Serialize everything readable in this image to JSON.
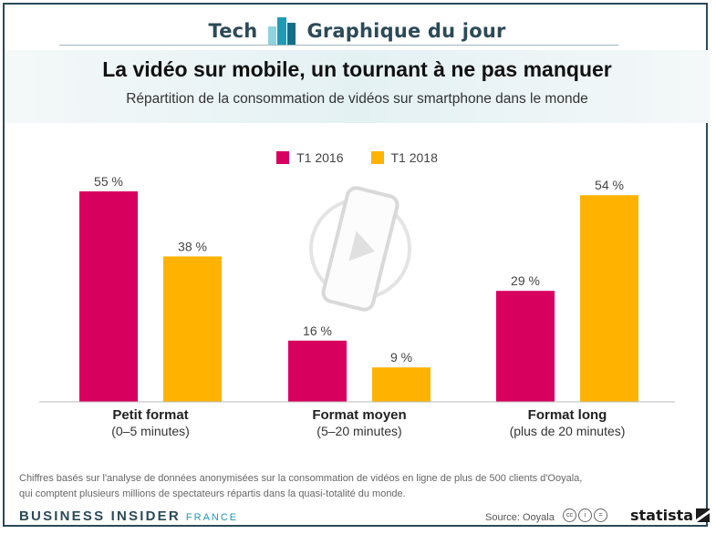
{
  "banner": {
    "left": "Tech",
    "right": "Graphique du jour"
  },
  "title": "La vidéo sur mobile, un tournant à ne pas manquer",
  "subtitle": "Répartition de la consommation de vidéos sur smartphone dans le monde",
  "chart_data": {
    "type": "bar",
    "categories": [
      "Petit format",
      "Format moyen",
      "Format long"
    ],
    "category_sublabels": [
      "(0–5 minutes)",
      "(5–20 minutes)",
      "(plus de 20 minutes)"
    ],
    "series": [
      {
        "name": "T1 2016",
        "values": [
          55,
          16,
          29
        ],
        "labels": [
          "55 %",
          "16 %",
          "29 %"
        ],
        "color": "#d8005f"
      },
      {
        "name": "T1 2018",
        "values": [
          38,
          9,
          54
        ],
        "labels": [
          "38 %",
          "9 %",
          "54 %"
        ],
        "color": "#ffb300"
      }
    ],
    "ylim": [
      0,
      60
    ],
    "grid": false,
    "legend_position": "top-center"
  },
  "footnote": [
    "Chiffres basés sur l'analyse de données anonymisées sur la consommation de vidéos en ligne de plus de 500 clients d'Ooyala,",
    "qui comptent plusieurs millions de spectateurs répartis dans la quasi-totalité du monde."
  ],
  "brand": {
    "name": "BUSINESS INSIDER",
    "edition": "FRANCE"
  },
  "source": "Source: Ooyala",
  "statista": "statista",
  "icons": [
    "phone-play-icon",
    "cc-icon",
    "by-icon",
    "nd-icon",
    "statista-logo-icon"
  ]
}
